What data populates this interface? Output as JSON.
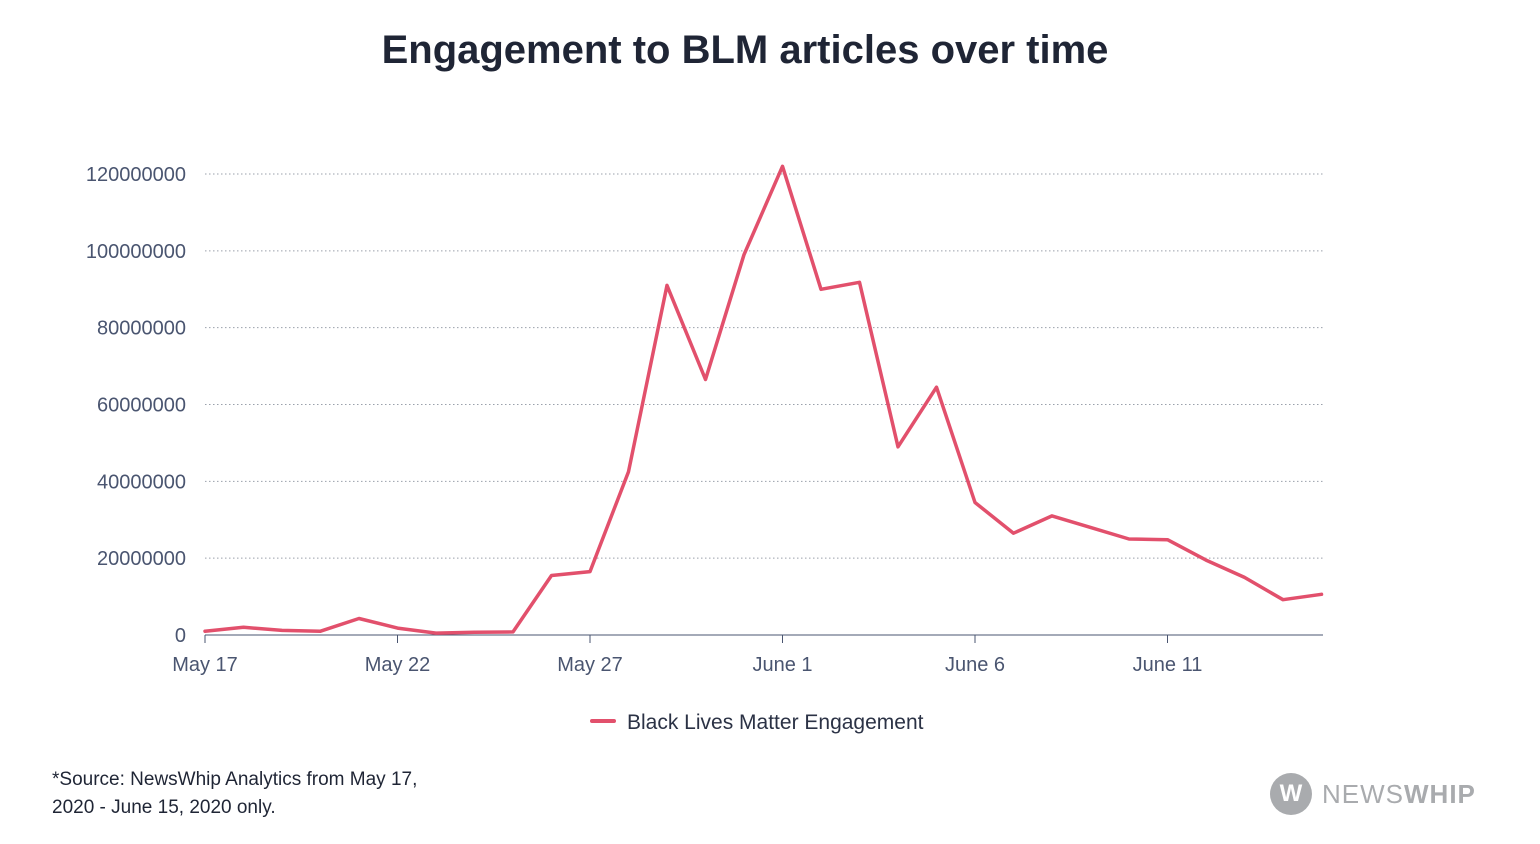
{
  "chart_data": {
    "type": "line",
    "title": "Engagement to BLM articles over time",
    "xlabel": "",
    "ylabel": "",
    "x": [
      "May 17",
      "May 18",
      "May 19",
      "May 20",
      "May 21",
      "May 22",
      "May 23",
      "May 24",
      "May 25",
      "May 26",
      "May 27",
      "May 28",
      "May 29",
      "May 30",
      "May 31",
      "June 1",
      "June 2",
      "June 3",
      "June 4",
      "June 5",
      "June 6",
      "June 7",
      "June 8",
      "June 9",
      "June 10",
      "June 11",
      "June 12",
      "June 13",
      "June 14",
      "June 15"
    ],
    "x_tick_labels": [
      "May 17",
      "May 22",
      "May 27",
      "June 1",
      "June 6",
      "June 11"
    ],
    "x_tick_indices": [
      0,
      5,
      10,
      15,
      20,
      25
    ],
    "ylim": [
      0,
      120000000
    ],
    "y_ticks": [
      0,
      20000000,
      40000000,
      60000000,
      80000000,
      100000000,
      120000000
    ],
    "y_tick_labels": [
      "0",
      "20000000",
      "40000000",
      "60000000",
      "80000000",
      "100000000",
      "120000000"
    ],
    "grid": true,
    "legend_position": "bottom-center",
    "series": [
      {
        "name": "Black Lives Matter Engagement",
        "color": "#e2506c",
        "values": [
          1000000,
          2000000,
          1200000,
          1000000,
          4300000,
          1800000,
          500000,
          700000,
          800000,
          15500000,
          16500000,
          42500000,
          91000000,
          66500000,
          99000000,
          122000000,
          90000000,
          91800000,
          49000000,
          64500000,
          34500000,
          26500000,
          31000000,
          28000000,
          25000000,
          24800000,
          19500000,
          15000000,
          9200000,
          10600000
        ]
      }
    ]
  },
  "source_note": "*Source: NewsWhip Analytics from May 17, 2020 - June 15, 2020 only.",
  "brand": {
    "mark": "W",
    "name_light": "NEWS",
    "name_bold": "WHIP"
  }
}
